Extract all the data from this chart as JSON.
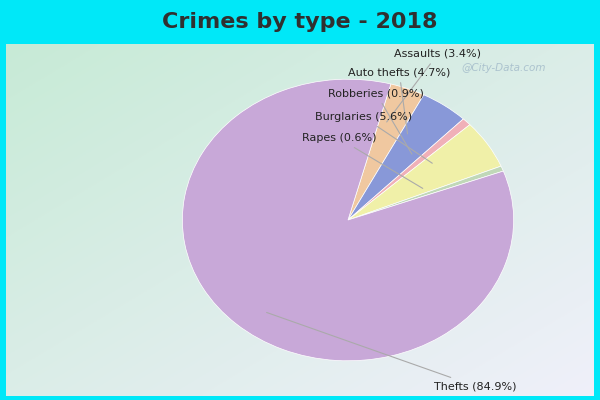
{
  "title": "Crimes by type - 2018",
  "wedge_labels": [
    "Assaults (3.4%)",
    "Auto thefts (4.7%)",
    "Robberies (0.9%)",
    "Burglaries (5.6%)",
    "Rapes (0.6%)",
    "Thefts (84.9%)"
  ],
  "wedge_sizes": [
    3.4,
    4.7,
    0.9,
    5.6,
    0.6,
    84.9
  ],
  "wedge_colors": [
    "#f0c8a0",
    "#8898d8",
    "#f0b0b8",
    "#f0f0a8",
    "#c0d8b8",
    "#c8a8d8"
  ],
  "bg_cyan": "#00e8f8",
  "title_fontsize": 16,
  "title_color": "#303030",
  "label_fontsize": 8,
  "watermark": "@City-Data.com",
  "watermark_color": "#a0b8c8",
  "startangle": 75,
  "gradient_tl": [
    0.78,
    0.92,
    0.84
  ],
  "gradient_br": [
    0.94,
    0.94,
    0.98
  ]
}
